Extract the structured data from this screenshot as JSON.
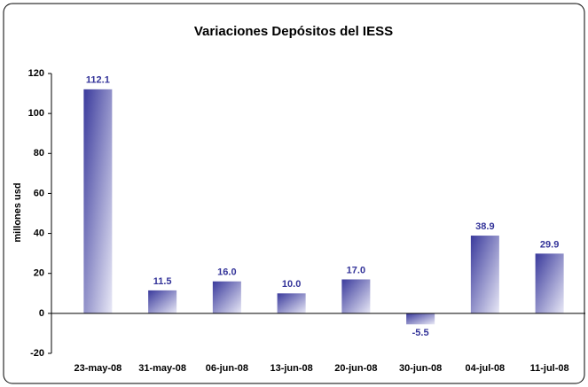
{
  "chart_data": {
    "type": "bar",
    "title": "Variaciones Depósitos del IESS",
    "y_label": "millones usd",
    "categories": [
      "23-may-08",
      "31-may-08",
      "06-jun-08",
      "13-jun-08",
      "20-jun-08",
      "30-jun-08",
      "04-jul-08",
      "11-jul-08"
    ],
    "values": [
      112.1,
      11.5,
      16.0,
      10.0,
      17.0,
      -5.5,
      38.9,
      29.9
    ],
    "value_labels": [
      "112.1",
      "11.5",
      "16.0",
      "10.0",
      "17.0",
      "-5.5",
      "38.9",
      "29.9"
    ],
    "color": "#3a3a9c",
    "ylim": [
      -20,
      120
    ],
    "yticks": [
      -20,
      0,
      20,
      40,
      60,
      80,
      100,
      120
    ],
    "grid": false
  }
}
